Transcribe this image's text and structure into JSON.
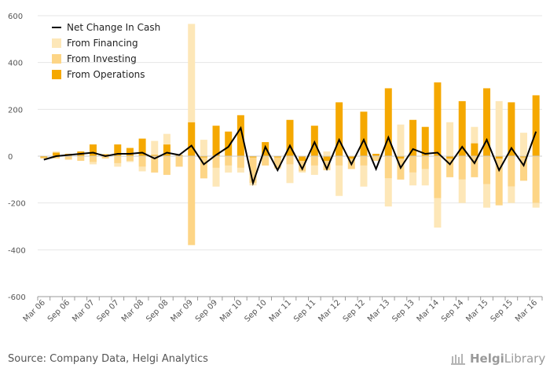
{
  "footer": {
    "source": "Source: Company Data, Helgi Analytics",
    "brand": {
      "bold": "Helgi",
      "rest": "Library"
    }
  },
  "colors": {
    "financing": "#fde7b8",
    "investing": "#fdd586",
    "operations": "#f5a800",
    "net": "#000000",
    "grid": "#e6e6e6",
    "axis": "#999999"
  },
  "chart_data": {
    "type": "bar",
    "title": "",
    "xlabel": "",
    "ylabel": "",
    "ylim": [
      -600,
      600
    ],
    "yticks": [
      600,
      400,
      200,
      0,
      -200,
      -400,
      -600
    ],
    "legend": [
      "Net Change In Cash",
      "From Financing",
      "From Investing",
      "From Operations"
    ],
    "legend_position": "top-left",
    "stacked": true,
    "categories": [
      "Mar 06",
      "Jun 06",
      "Sep 06",
      "Dec 06",
      "Mar 07",
      "Jun 07",
      "Sep 07",
      "Dec 07",
      "Mar 08",
      "Jun 08",
      "Sep 08",
      "Dec 08",
      "Mar 09",
      "Jun 09",
      "Sep 09",
      "Dec 09",
      "Mar 10",
      "Jun 10",
      "Sep 10",
      "Dec 10",
      "Mar 11",
      "Jun 11",
      "Sep 11",
      "Dec 11",
      "Mar 12",
      "Jun 12",
      "Sep 12",
      "Dec 12",
      "Mar 13",
      "Jun 13",
      "Sep 13",
      "Dec 13",
      "Mar 14",
      "Jun 14",
      "Sep 14",
      "Dec 14",
      "Mar 15",
      "Jun 15",
      "Sep 15",
      "Dec 15",
      "Mar 16"
    ],
    "tick_labels": [
      "Mar 06",
      "Sep 06",
      "Mar 07",
      "Sep 07",
      "Mar 08",
      "Sep 08",
      "Mar 09",
      "Sep 09",
      "Mar 10",
      "Sep 10",
      "Mar 11",
      "Sep 11",
      "Mar 12",
      "Sep 12",
      "Mar 13",
      "Sep 13",
      "Mar 14",
      "Sep 14",
      "Mar 15",
      "Sep 15",
      "Mar 16"
    ],
    "series": [
      {
        "name": "From Operations",
        "kind": "bar",
        "values": [
          -5,
          15,
          10,
          20,
          50,
          8,
          50,
          35,
          75,
          5,
          50,
          5,
          145,
          -5,
          130,
          105,
          175,
          -5,
          60,
          -5,
          155,
          -20,
          130,
          -20,
          230,
          -10,
          190,
          10,
          290,
          -10,
          155,
          125,
          315,
          -10,
          235,
          55,
          290,
          -10,
          230,
          -5,
          260
        ]
      },
      {
        "name": "From Investing",
        "kind": "bar",
        "values": [
          -5,
          -10,
          -15,
          -20,
          -25,
          -10,
          -30,
          -20,
          -45,
          -70,
          -80,
          -45,
          -380,
          -90,
          -50,
          -40,
          -50,
          -110,
          -40,
          -45,
          -35,
          -45,
          -40,
          -40,
          -40,
          -45,
          -40,
          -20,
          -95,
          -90,
          -70,
          -55,
          -180,
          -80,
          -100,
          -90,
          -120,
          -200,
          -130,
          -100,
          -200
        ]
      },
      {
        "name": "From Financing",
        "kind": "bar",
        "values": [
          0,
          5,
          0,
          0,
          -10,
          0,
          -15,
          -5,
          -20,
          60,
          45,
          0,
          420,
          70,
          -80,
          -30,
          -20,
          -10,
          0,
          -5,
          -80,
          -5,
          -40,
          20,
          -130,
          0,
          -90,
          0,
          -120,
          135,
          -55,
          -70,
          -125,
          145,
          -100,
          70,
          -100,
          235,
          -70,
          100,
          -20
        ]
      },
      {
        "name": "Net Change In Cash",
        "kind": "line",
        "values": [
          -15,
          0,
          5,
          10,
          15,
          0,
          10,
          10,
          15,
          -10,
          15,
          5,
          45,
          -35,
          5,
          40,
          120,
          -115,
          40,
          -60,
          45,
          -55,
          60,
          -55,
          70,
          -35,
          70,
          -55,
          80,
          -50,
          30,
          10,
          15,
          -35,
          40,
          -30,
          70,
          -60,
          35,
          -40,
          105
        ]
      }
    ]
  }
}
